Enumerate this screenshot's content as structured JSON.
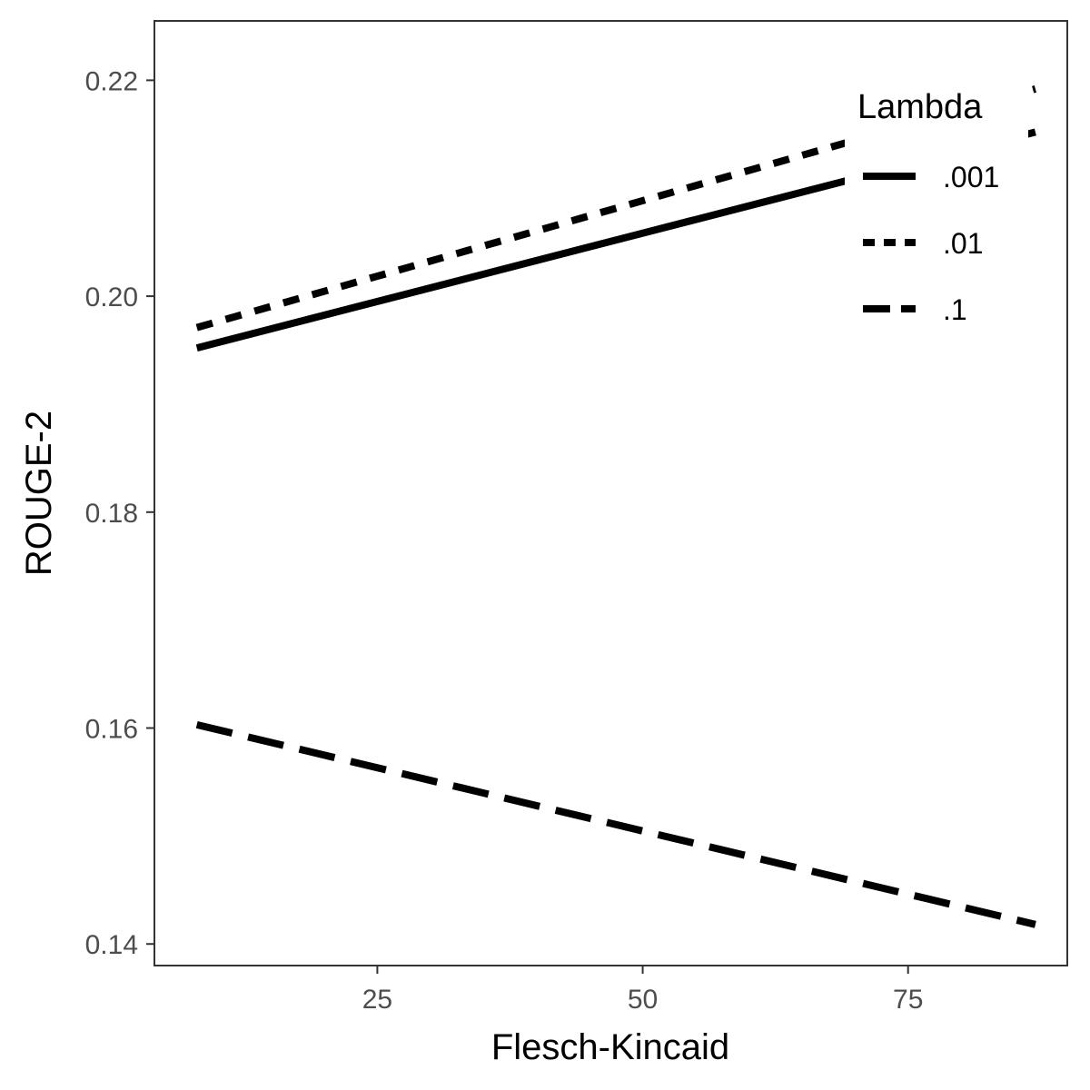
{
  "chart_data": {
    "type": "line",
    "title": "",
    "xlabel": "Flesch-Kincaid",
    "ylabel": "ROUGE-2",
    "xlim": [
      4,
      90
    ],
    "ylim": [
      0.138,
      0.2255
    ],
    "x_ticks": [
      25,
      50,
      75
    ],
    "y_ticks": [
      0.14,
      0.16,
      0.18,
      0.2,
      0.22
    ],
    "x_tick_labels": [
      "25",
      "50",
      "75"
    ],
    "y_tick_labels": [
      "0.14",
      "0.16",
      "0.18",
      "0.20",
      "0.22"
    ],
    "grid": false,
    "legend": {
      "title": "Lambda",
      "position": "top-right"
    },
    "series": [
      {
        "name": ".001",
        "linestyle": "solid",
        "x": [
          8,
          87
        ],
        "y": [
          0.1952,
          0.2152
        ]
      },
      {
        "name": ".01",
        "linestyle": "dotted",
        "x": [
          8,
          87
        ],
        "y": [
          0.1971,
          0.2192
        ]
      },
      {
        "name": ".1",
        "linestyle": "dashed",
        "x": [
          8,
          87
        ],
        "y": [
          0.1603,
          0.1418
        ]
      }
    ],
    "colors": {
      "line": "#000000",
      "panel_border": "#333333",
      "tick_text": "#4d4d4d",
      "background": "#ffffff"
    }
  }
}
